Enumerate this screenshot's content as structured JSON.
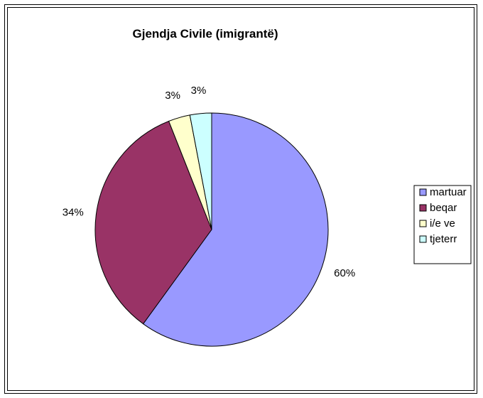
{
  "chart_data": {
    "type": "pie",
    "title": "Gjendja Civile (imigrantë)",
    "categories": [
      "martuar",
      "beqar",
      "i/e ve",
      "tjeterr"
    ],
    "values": [
      60,
      34,
      3,
      3
    ],
    "labels": [
      "60%",
      "34%",
      "3%",
      "3%"
    ],
    "colors": [
      "#9999ff",
      "#993366",
      "#ffffcc",
      "#ccffff"
    ],
    "legend": "right"
  }
}
